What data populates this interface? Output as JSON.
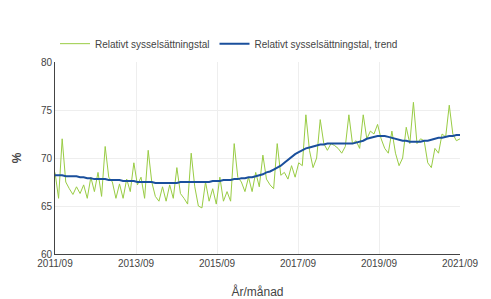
{
  "chart_data": {
    "type": "line",
    "xlabel": "År/månad",
    "ylabel": "%",
    "x": [
      0,
      1.0619,
      2.1239,
      3.1858,
      4.2478,
      5.3097,
      6.3717,
      7.4336,
      8.4956,
      9.5575,
      10.6195,
      11.6814,
      12.7434,
      13.8053,
      14.8673,
      15.9292,
      16.9912,
      18.0531,
      19.115,
      20.177,
      21.2389,
      22.3009,
      23.3628,
      24.4248,
      25.4867,
      26.5487,
      27.6106,
      28.6726,
      29.7345,
      30.7965,
      31.8584,
      32.9204,
      33.9823,
      35.0442,
      36.1062,
      37.1681,
      38.2301,
      39.292,
      40.354,
      41.4159,
      42.4779,
      43.5398,
      44.6018,
      45.6637,
      46.7257,
      47.7876,
      48.8496,
      49.9115,
      50.9735,
      52.0354,
      53.0973,
      54.1593,
      55.2212,
      56.2832,
      57.3451,
      58.4071,
      59.469,
      60.531,
      61.5929,
      62.6549,
      63.7168,
      64.7788,
      65.8407,
      66.9027,
      67.9646,
      69.0265,
      70.0885,
      71.1504,
      72.2124,
      73.2743,
      74.3363,
      75.3982,
      76.4602,
      77.5221,
      78.5841,
      79.646,
      80.708,
      81.7699,
      82.8319,
      83.8938,
      84.9558,
      86.0177,
      87.0796,
      88.1416,
      89.2035,
      90.2655,
      91.3274,
      92.3894,
      93.4513,
      94.5133,
      95.5752,
      96.6372,
      97.6991,
      98.7611,
      99.823,
      100.885,
      101.9469,
      103.0088,
      104.0708,
      105.1327,
      106.1947,
      107.2566,
      108.3186,
      109.3805,
      110.4425,
      111.5044,
      112.5664,
      113.6283,
      114.6903,
      115.7522,
      116.8142,
      117.8761,
      118.9381,
      120
    ],
    "series": [
      {
        "name": "Relativt sysselsättningstal",
        "color": "#99cc44",
        "values": [
          68.5,
          65.8,
          72.0,
          67.5,
          66.8,
          66.2,
          67.0,
          66.3,
          67.2,
          65.8,
          68.0,
          66.5,
          68.5,
          66.0,
          71.2,
          68.0,
          67.5,
          65.8,
          67.3,
          65.8,
          67.8,
          66.5,
          69.5,
          67.2,
          68.0,
          65.8,
          70.8,
          67.5,
          66.0,
          65.5,
          67.0,
          65.5,
          67.2,
          65.8,
          69.0,
          66.3,
          65.8,
          65.2,
          70.5,
          67.0,
          65.0,
          64.8,
          67.5,
          65.5,
          66.8,
          65.2,
          68.0,
          65.5,
          66.5,
          65.5,
          71.5,
          68.0,
          67.5,
          66.5,
          68.0,
          66.5,
          68.5,
          67.0,
          70.3,
          67.8,
          67.2,
          66.8,
          71.5,
          68.2,
          68.5,
          67.8,
          69.2,
          68.0,
          69.5,
          69.2,
          74.5,
          70.8,
          69.0,
          70.0,
          74.0,
          71.5,
          70.8,
          71.5,
          71.3,
          71.0,
          70.5,
          71.2,
          74.5,
          71.5,
          71.8,
          71.0,
          74.5,
          72.0,
          72.8,
          72.5,
          73.5,
          72.0,
          71.0,
          70.5,
          72.8,
          70.5,
          69.2,
          70.0,
          73.2,
          71.5,
          75.8,
          71.5,
          72.0,
          71.8,
          69.5,
          69.0,
          71.0,
          70.5,
          72.5,
          72.2,
          75.5,
          72.5,
          71.8,
          72.0
        ]
      },
      {
        "name": "Relativt sysselsättningstal, trend",
        "color": "#1a4f9c",
        "values": [
          68.2,
          68.2,
          68.2,
          68.1,
          68.1,
          68.1,
          68.1,
          68.0,
          68.0,
          67.9,
          67.9,
          67.8,
          67.8,
          67.8,
          67.8,
          67.7,
          67.7,
          67.7,
          67.7,
          67.6,
          67.6,
          67.6,
          67.6,
          67.5,
          67.5,
          67.5,
          67.5,
          67.5,
          67.4,
          67.4,
          67.4,
          67.4,
          67.4,
          67.4,
          67.4,
          67.5,
          67.5,
          67.5,
          67.5,
          67.5,
          67.5,
          67.5,
          67.5,
          67.5,
          67.6,
          67.6,
          67.6,
          67.7,
          67.7,
          67.7,
          67.8,
          67.8,
          67.9,
          67.9,
          68.0,
          68.0,
          68.1,
          68.2,
          68.3,
          68.5,
          68.6,
          68.8,
          69.0,
          69.2,
          69.5,
          69.8,
          70.1,
          70.4,
          70.6,
          70.8,
          71.0,
          71.1,
          71.2,
          71.3,
          71.4,
          71.4,
          71.5,
          71.5,
          71.5,
          71.5,
          71.5,
          71.5,
          71.5,
          71.5,
          71.6,
          71.7,
          71.8,
          72.0,
          72.1,
          72.2,
          72.3,
          72.3,
          72.3,
          72.2,
          72.1,
          72.0,
          71.9,
          71.8,
          71.8,
          71.7,
          71.7,
          71.7,
          71.7,
          71.8,
          71.8,
          71.9,
          72.0,
          72.1,
          72.1,
          72.2,
          72.3,
          72.3,
          72.4,
          72.4
        ]
      }
    ],
    "xlim": [
      0,
      120
    ],
    "xticks": [
      {
        "value": 0,
        "label": "2011/09"
      },
      {
        "value": 24,
        "label": "2013/09"
      },
      {
        "value": 48,
        "label": "2015/09"
      },
      {
        "value": 72,
        "label": "2017/09"
      },
      {
        "value": 96,
        "label": "2019/09"
      },
      {
        "value": 120,
        "label": "2021/09"
      }
    ],
    "ylim": [
      60,
      80
    ],
    "yticks": [
      60,
      65,
      70,
      75,
      80
    ],
    "grid": true,
    "legend": "upper left"
  }
}
